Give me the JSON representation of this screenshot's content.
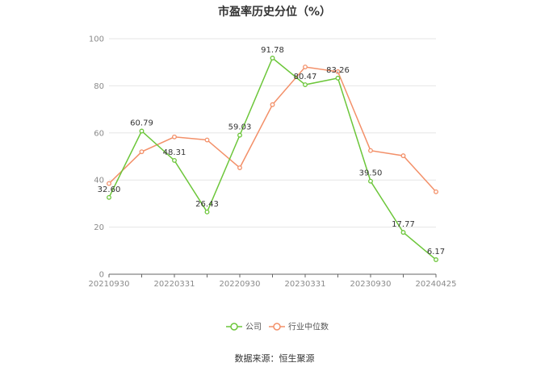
{
  "chart_data": {
    "type": "line",
    "title": "市盈率历史分位（%）",
    "source": "数据来源：恒生聚源",
    "x_tick_labels": [
      "20210930",
      "20220331",
      "20220930",
      "20230331",
      "20230930",
      "20240425"
    ],
    "y_ticks": [
      0,
      20,
      40,
      60,
      80,
      100
    ],
    "ylim": [
      0,
      100
    ],
    "grid": "horizontal",
    "legend_position": "bottom",
    "series": [
      {
        "name": "公司",
        "color": "#6cc63a",
        "values": [
          32.6,
          60.79,
          48.31,
          26.43,
          59.03,
          91.78,
          80.47,
          83.26,
          39.5,
          17.77,
          6.17
        ],
        "labels": [
          "32.60",
          "60.79",
          "48.31",
          "26.43",
          "59.03",
          "91.78",
          "80.47",
          "83.26",
          "39.50",
          "17.77",
          "6.17"
        ]
      },
      {
        "name": "行业中位数",
        "color": "#f39069",
        "values": [
          38.5,
          52.0,
          58.3,
          57.0,
          45.2,
          72.0,
          88.0,
          86.0,
          52.5,
          50.3,
          35.0
        ]
      }
    ]
  }
}
